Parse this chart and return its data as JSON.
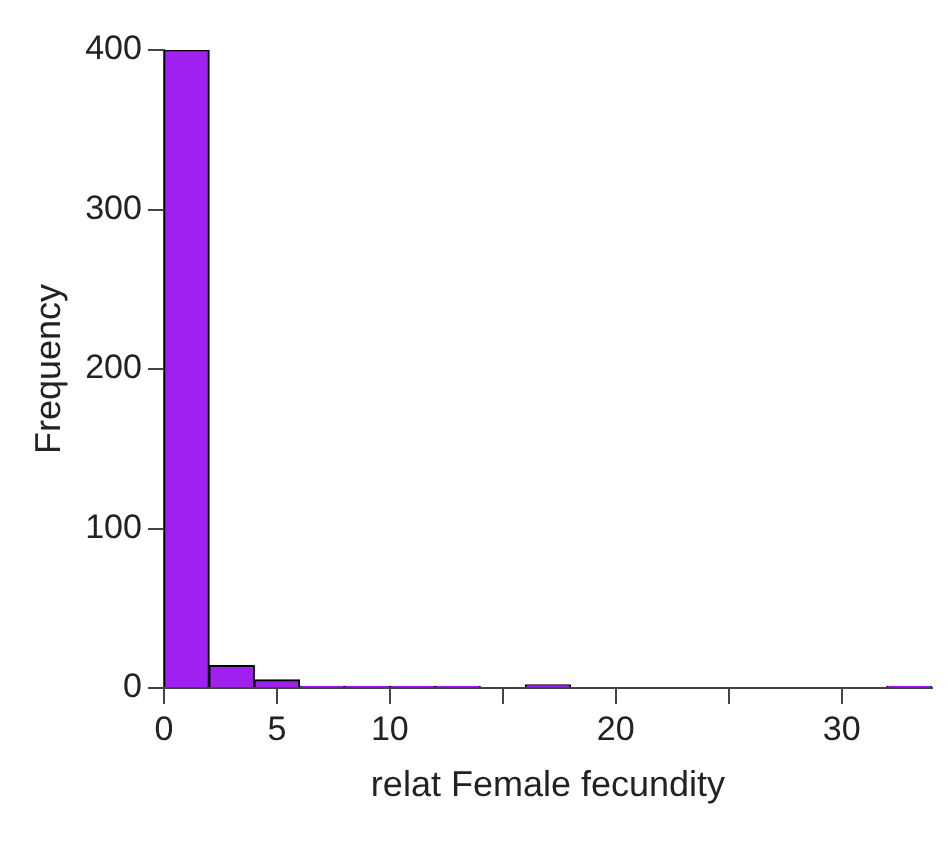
{
  "chart_data": {
    "type": "histogram",
    "xlabel": "relat Female fecundity",
    "ylabel": "Frequency",
    "bins": [
      0,
      2,
      4,
      6,
      8,
      10,
      12,
      14,
      16,
      18,
      20,
      22,
      24,
      26,
      28,
      30,
      32,
      34
    ],
    "values": [
      400,
      14,
      5,
      1,
      1,
      1,
      1,
      0,
      2,
      0,
      0,
      0,
      0,
      0,
      0,
      0,
      1
    ],
    "color": "#a020f0",
    "xlim": [
      0,
      34
    ],
    "xticks": [
      0,
      5,
      10,
      {
        "value": 15,
        "label": null
      },
      20,
      {
        "value": 25,
        "label": null
      },
      30
    ],
    "ylim": [
      0,
      400
    ],
    "yticks": [
      0,
      100,
      200,
      300,
      400
    ],
    "grid": false
  }
}
